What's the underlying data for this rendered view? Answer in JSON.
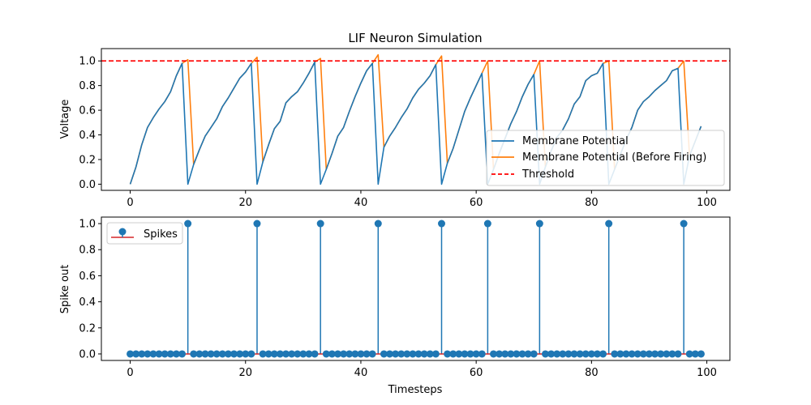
{
  "chart_data": [
    {
      "type": "line",
      "title": "LIF Neuron Simulation",
      "xlabel": "",
      "ylabel": "Voltage",
      "xlim": [
        -5,
        104
      ],
      "ylim": [
        -0.05,
        1.1
      ],
      "xticks": [
        0,
        20,
        40,
        60,
        80,
        100
      ],
      "yticks": [
        0.0,
        0.2,
        0.4,
        0.6,
        0.8,
        1.0
      ],
      "xtick_labels": [
        "0",
        "20",
        "40",
        "60",
        "80",
        "100"
      ],
      "ytick_labels": [
        "0.0",
        "0.2",
        "0.4",
        "0.6",
        "0.8",
        "1.0"
      ],
      "legend_position": "lower-right",
      "threshold": 1.0,
      "series": [
        {
          "name": "Membrane Potential",
          "color": "#1f77b4",
          "x": [
            0,
            1,
            2,
            3,
            4,
            5,
            6,
            7,
            8,
            9,
            10,
            11,
            12,
            13,
            14,
            15,
            16,
            17,
            18,
            19,
            20,
            21,
            22,
            23,
            24,
            25,
            26,
            27,
            28,
            29,
            30,
            31,
            32,
            33,
            34,
            35,
            36,
            37,
            38,
            39,
            40,
            41,
            42,
            43,
            44,
            45,
            46,
            47,
            48,
            49,
            50,
            51,
            52,
            53,
            54,
            55,
            56,
            57,
            58,
            59,
            60,
            61,
            62,
            63,
            64,
            65,
            66,
            67,
            68,
            69,
            70,
            71,
            72,
            73,
            74,
            75,
            76,
            77,
            78,
            79,
            80,
            81,
            82,
            83,
            84,
            85,
            86,
            87,
            88,
            89,
            90,
            91,
            92,
            93,
            94,
            95,
            96,
            97,
            98,
            99
          ],
          "values": [
            0.0,
            0.14,
            0.32,
            0.46,
            0.54,
            0.61,
            0.67,
            0.75,
            0.88,
            0.98,
            0.0,
            0.16,
            0.28,
            0.39,
            0.46,
            0.53,
            0.63,
            0.7,
            0.78,
            0.86,
            0.91,
            0.98,
            0.0,
            0.18,
            0.32,
            0.45,
            0.51,
            0.66,
            0.71,
            0.75,
            0.82,
            0.9,
            0.99,
            0.0,
            0.12,
            0.25,
            0.39,
            0.46,
            0.59,
            0.71,
            0.82,
            0.92,
            0.98,
            0.0,
            0.3,
            0.39,
            0.46,
            0.54,
            0.61,
            0.7,
            0.77,
            0.82,
            0.88,
            0.97,
            0.0,
            0.17,
            0.29,
            0.44,
            0.59,
            0.7,
            0.8,
            0.9,
            0.0,
            0.12,
            0.25,
            0.37,
            0.49,
            0.59,
            0.71,
            0.81,
            0.89,
            0.0,
            0.14,
            0.27,
            0.38,
            0.44,
            0.53,
            0.65,
            0.71,
            0.84,
            0.88,
            0.9,
            0.98,
            0.0,
            0.12,
            0.24,
            0.36,
            0.46,
            0.6,
            0.67,
            0.71,
            0.76,
            0.8,
            0.84,
            0.92,
            0.94,
            0.0,
            0.23,
            0.35,
            0.47
          ]
        },
        {
          "name": "Membrane Potential (Before Firing)",
          "color": "#ff7f0e",
          "x": [
            0,
            1,
            2,
            3,
            4,
            5,
            6,
            7,
            8,
            9,
            10,
            11,
            12,
            13,
            14,
            15,
            16,
            17,
            18,
            19,
            20,
            21,
            22,
            23,
            24,
            25,
            26,
            27,
            28,
            29,
            30,
            31,
            32,
            33,
            34,
            35,
            36,
            37,
            38,
            39,
            40,
            41,
            42,
            43,
            44,
            45,
            46,
            47,
            48,
            49,
            50,
            51,
            52,
            53,
            54,
            55,
            56,
            57,
            58,
            59,
            60,
            61,
            62,
            63,
            64,
            65,
            66,
            67,
            68,
            69,
            70,
            71,
            72,
            73,
            74,
            75,
            76,
            77,
            78,
            79,
            80,
            81,
            82,
            83,
            84,
            85,
            86,
            87,
            88,
            89,
            90,
            91,
            92,
            93,
            94,
            95,
            96,
            97,
            98,
            99
          ],
          "values": [
            0.0,
            0.14,
            0.32,
            0.46,
            0.54,
            0.61,
            0.67,
            0.75,
            0.88,
            0.98,
            1.01,
            0.16,
            0.28,
            0.39,
            0.46,
            0.53,
            0.63,
            0.7,
            0.78,
            0.86,
            0.91,
            0.98,
            1.03,
            0.18,
            0.32,
            0.45,
            0.51,
            0.66,
            0.71,
            0.75,
            0.82,
            0.9,
            0.99,
            1.02,
            0.12,
            0.25,
            0.39,
            0.46,
            0.59,
            0.71,
            0.82,
            0.92,
            0.98,
            1.05,
            0.3,
            0.39,
            0.46,
            0.54,
            0.61,
            0.7,
            0.77,
            0.82,
            0.88,
            0.97,
            1.04,
            0.17,
            0.29,
            0.44,
            0.59,
            0.7,
            0.8,
            0.9,
            1.0,
            0.12,
            0.25,
            0.37,
            0.49,
            0.59,
            0.71,
            0.81,
            0.89,
            1.0,
            0.14,
            0.27,
            0.38,
            0.44,
            0.53,
            0.65,
            0.71,
            0.84,
            0.88,
            0.9,
            0.98,
            1.0,
            0.12,
            0.24,
            0.36,
            0.46,
            0.6,
            0.67,
            0.71,
            0.76,
            0.8,
            0.84,
            0.92,
            0.94,
            1.0,
            0.23,
            0.35,
            0.47
          ]
        },
        {
          "name": "Threshold",
          "color": "#ff0000",
          "style": "dashed",
          "constant": 1.0
        }
      ]
    },
    {
      "type": "stem",
      "title": "",
      "xlabel": "Timesteps",
      "ylabel": "Spike out",
      "xlim": [
        -5,
        104
      ],
      "ylim": [
        -0.05,
        1.05
      ],
      "xticks": [
        0,
        20,
        40,
        60,
        80,
        100
      ],
      "yticks": [
        0.0,
        0.2,
        0.4,
        0.6,
        0.8,
        1.0
      ],
      "xtick_labels": [
        "0",
        "20",
        "40",
        "60",
        "80",
        "100"
      ],
      "ytick_labels": [
        "0.0",
        "0.2",
        "0.4",
        "0.6",
        "0.8",
        "1.0"
      ],
      "legend_position": "upper-left",
      "series": [
        {
          "name": "Spikes",
          "marker_color": "#1f77b4",
          "baseline_color": "#d62728",
          "x_range": [
            0,
            99
          ],
          "spike_times": [
            10,
            22,
            33,
            43,
            54,
            62,
            71,
            83,
            96
          ]
        }
      ]
    }
  ]
}
